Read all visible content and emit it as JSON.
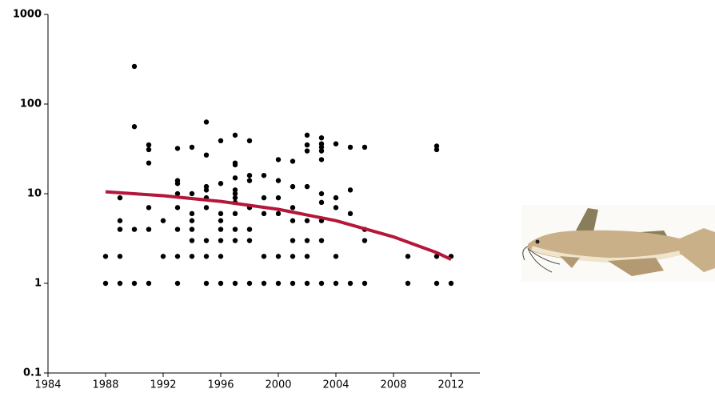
{
  "chart_data": {
    "type": "scatter",
    "x": [
      1988,
      1988,
      1989,
      1989,
      1989,
      1989,
      1989,
      1990,
      1990,
      1990,
      1990,
      1991,
      1991,
      1991,
      1991,
      1991,
      1991,
      1992,
      1992,
      1993,
      1993,
      1993,
      1993,
      1993,
      1993,
      1993,
      1993,
      1994,
      1994,
      1994,
      1994,
      1994,
      1994,
      1994,
      1995,
      1995,
      1995,
      1995,
      1995,
      1995,
      1995,
      1995,
      1995,
      1996,
      1996,
      1996,
      1996,
      1996,
      1996,
      1996,
      1996,
      1997,
      1997,
      1997,
      1997,
      1997,
      1997,
      1997,
      1997,
      1997,
      1997,
      1997,
      1997,
      1998,
      1998,
      1998,
      1998,
      1998,
      1998,
      1998,
      1999,
      1999,
      1999,
      1999,
      1999,
      2000,
      2000,
      2000,
      2000,
      2000,
      2000,
      2001,
      2001,
      2001,
      2001,
      2001,
      2001,
      2001,
      2002,
      2002,
      2002,
      2002,
      2002,
      2002,
      2002,
      2002,
      2003,
      2003,
      2003,
      2003,
      2003,
      2003,
      2003,
      2003,
      2003,
      2003,
      2004,
      2004,
      2004,
      2004,
      2004,
      2005,
      2005,
      2005,
      2005,
      2006,
      2006,
      2006,
      2006,
      2009,
      2009,
      2011,
      2011,
      2011,
      2011,
      2012,
      2012
    ],
    "values": [
      2,
      1,
      9,
      5,
      4,
      2,
      1,
      263,
      56,
      4,
      1,
      35,
      31,
      22,
      7,
      4,
      1,
      5,
      2,
      32,
      14,
      13,
      10,
      7,
      4,
      2,
      1,
      33,
      10,
      6,
      5,
      4,
      3,
      2,
      63,
      27,
      12,
      11,
      9,
      7,
      3,
      2,
      1,
      39,
      13,
      6,
      5,
      4,
      3,
      2,
      1,
      45,
      22,
      21,
      15,
      11,
      10,
      9,
      8,
      6,
      4,
      3,
      1,
      39,
      16,
      14,
      7,
      4,
      3,
      1,
      16,
      9,
      6,
      2,
      1,
      24,
      14,
      9,
      6,
      2,
      1,
      23,
      12,
      7,
      5,
      3,
      2,
      1,
      45,
      35,
      30,
      12,
      5,
      3,
      2,
      1,
      42,
      36,
      33,
      30,
      24,
      10,
      8,
      5,
      3,
      1,
      36,
      9,
      7,
      2,
      1,
      33,
      11,
      6,
      1,
      33,
      4,
      3,
      1,
      2,
      1,
      34,
      31,
      2,
      1,
      2,
      1
    ],
    "color": "#000000",
    "trend": {
      "x": [
        1988,
        1992,
        1996,
        2000,
        2004,
        2008,
        2011,
        2012
      ],
      "values": [
        10.5,
        9.5,
        8.2,
        6.7,
        5.0,
        3.3,
        2.2,
        1.85
      ],
      "color": "#b5173a"
    },
    "xlim": [
      1984,
      2014
    ],
    "xticks": [
      1984,
      1988,
      1992,
      1996,
      2000,
      2004,
      2008,
      2012
    ],
    "ylim": [
      0.1,
      1000
    ],
    "yticks": [
      0.1,
      1,
      10,
      100,
      1000
    ],
    "log_y": true
  }
}
